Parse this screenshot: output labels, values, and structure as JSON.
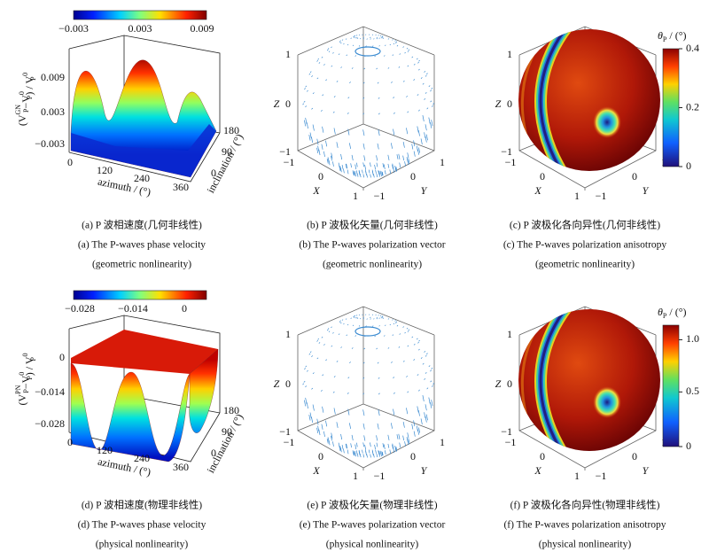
{
  "panels": [
    {
      "kind": "surface",
      "colorbar_ticks": [
        "−0.003",
        "0.003",
        "0.009"
      ],
      "z_label": [
        {
          "text": "(V"
        },
        {
          "sub": "P",
          "sup": "GN"
        },
        {
          "text": "−V"
        },
        {
          "sub": "P",
          "sup": "0"
        },
        {
          "text": ") / V"
        },
        {
          "sub": "P",
          "sup": "0"
        }
      ],
      "z_ticks": [
        "0.009",
        "0.003",
        "−0.003"
      ],
      "x_label": "azimuth / (°)",
      "x_ticks": [
        "0",
        "120",
        "240",
        "360"
      ],
      "y_label": "inclination / (°)",
      "y_ticks": [
        "0",
        "90",
        "180"
      ],
      "caption": [
        "(a) P 波相速度(几何非线性)",
        "(a) The P-waves phase velocity",
        "(geometric nonlinearity)"
      ]
    },
    {
      "kind": "vectors",
      "z_label": "Z",
      "x_label": "X",
      "y_label": "Y",
      "z_ticks": [
        "1",
        "0",
        "−1"
      ],
      "x_ticks": [
        "−1",
        "0",
        "1"
      ],
      "y_ticks": [
        "−1",
        "0",
        "1"
      ],
      "caption": [
        "(b) P 波极化矢量(几何非线性)",
        "(b) The P-waves polarization vector",
        "(geometric nonlinearity)"
      ]
    },
    {
      "kind": "sphere",
      "z_label": "Z",
      "x_label": "X",
      "y_label": "Y",
      "z_ticks": [
        "1",
        "0",
        "−1"
      ],
      "x_ticks": [
        "−1",
        "0",
        "1"
      ],
      "y_ticks": [
        "−1",
        "0",
        "1"
      ],
      "colorbar_title": {
        "symbol": "θ",
        "sub": "P",
        "unit": " / (°)"
      },
      "colorbar_ticks": [
        "0.4",
        "0.2",
        "0"
      ],
      "caption": [
        "(c) P 波极化各向异性(几何非线性)",
        "(c) The P-waves polarization anisotropy",
        "(geometric nonlinearity)"
      ]
    },
    {
      "kind": "surface2",
      "colorbar_ticks": [
        "−0.028",
        "−0.014",
        "0"
      ],
      "z_label": [
        {
          "text": "(V"
        },
        {
          "sub": "P",
          "sup": "PN"
        },
        {
          "text": "−V"
        },
        {
          "sub": "P",
          "sup": "0"
        },
        {
          "text": ") / V"
        },
        {
          "sub": "P",
          "sup": "0"
        }
      ],
      "z_ticks": [
        "0",
        "−0.014",
        "−0.028"
      ],
      "x_label": "azimuth / (°)",
      "x_ticks": [
        "0",
        "120",
        "240",
        "360"
      ],
      "y_label": "inclination / (°)",
      "y_ticks": [
        "0",
        "90",
        "180"
      ],
      "caption": [
        "(d) P 波相速度(物理非线性)",
        "(d) The P-waves phase velocity",
        "(physical nonlinearity)"
      ]
    },
    {
      "kind": "vectors",
      "z_label": "Z",
      "x_label": "X",
      "y_label": "Y",
      "z_ticks": [
        "1",
        "0",
        "−1"
      ],
      "x_ticks": [
        "−1",
        "0",
        "1"
      ],
      "y_ticks": [
        "−1",
        "0",
        "1"
      ],
      "caption": [
        "(e) P 波极化矢量(物理非线性)",
        "(e) The P-waves polarization vector",
        "(physical nonlinearity)"
      ]
    },
    {
      "kind": "sphere",
      "z_label": "Z",
      "x_label": "X",
      "y_label": "Y",
      "z_ticks": [
        "1",
        "0",
        "−1"
      ],
      "x_ticks": [
        "−1",
        "0",
        "1"
      ],
      "y_ticks": [
        "−1",
        "0",
        "1"
      ],
      "colorbar_title": {
        "symbol": "θ",
        "sub": "P",
        "unit": " / (°)"
      },
      "colorbar_ticks": [
        "1.0",
        "0.5",
        "0"
      ],
      "caption": [
        "(f) P 波极化各向异性(物理非线性)",
        "(f) The P-waves polarization anisotropy",
        "(physical nonlinearity)"
      ]
    }
  ]
}
